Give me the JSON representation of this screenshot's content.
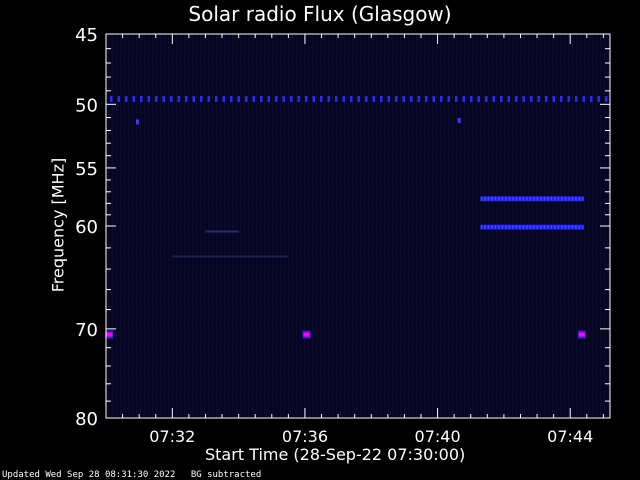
{
  "chart_data": {
    "type": "heatmap",
    "title": "Solar radio Flux (Glasgow)",
    "xlabel": "Start Time (28-Sep-22 07:30:00)",
    "ylabel": "Frequency [MHz]",
    "x_unit": "time",
    "x_start": "07:30:00",
    "x_range_minutes": [
      0,
      15.2
    ],
    "x_ticks": [
      "07:32",
      "07:36",
      "07:40",
      "07:44"
    ],
    "x_tick_minutes": [
      2,
      6,
      10,
      14
    ],
    "y_scale": "log",
    "y_reversed": true,
    "ylim": [
      45,
      80
    ],
    "y_ticks": [
      45,
      50,
      55,
      60,
      70,
      80
    ],
    "y_minor_ticks": [
      46,
      47,
      48,
      49,
      51,
      52,
      53,
      54,
      56,
      57,
      58,
      59,
      62,
      64,
      66,
      68,
      72,
      74,
      76,
      78
    ],
    "colormap": [
      "#000010",
      "#0a0a3a",
      "#1a1aff",
      "#ff00ff"
    ],
    "background_intensity": "low",
    "features": [
      {
        "kind": "dotted-line",
        "freq_mhz": 49.6,
        "time_min": [
          0,
          15.2
        ],
        "color": "#2a2aff"
      },
      {
        "kind": "dot",
        "freq_mhz": 51.3,
        "time_min": 0.95,
        "color": "#3a3aff"
      },
      {
        "kind": "dot",
        "freq_mhz": 51.2,
        "time_min": 10.65,
        "color": "#3a3aff"
      },
      {
        "kind": "band",
        "freq_mhz": 57.6,
        "time_min": [
          11.3,
          14.4
        ],
        "color": "#1a1aff"
      },
      {
        "kind": "band",
        "freq_mhz": 60.1,
        "time_min": [
          11.3,
          14.4
        ],
        "color": "#1a1aff"
      },
      {
        "kind": "faint-line",
        "freq_mhz": 60.5,
        "time_min": [
          3.0,
          4.0
        ],
        "color": "#2a2a6a"
      },
      {
        "kind": "faint-line",
        "freq_mhz": 62.8,
        "time_min": [
          2.0,
          5.5
        ],
        "color": "#20204e"
      },
      {
        "kind": "hotspot",
        "freq_mhz": 70.6,
        "time_min": 0.1,
        "color": "#ff00ff"
      },
      {
        "kind": "hotspot",
        "freq_mhz": 70.6,
        "time_min": 6.05,
        "color": "#ff00ff"
      },
      {
        "kind": "hotspot",
        "freq_mhz": 70.6,
        "time_min": 14.35,
        "color": "#ff00ff"
      }
    ]
  },
  "footer": {
    "updated": "Updated Wed Sep 28 08:31:30 2022",
    "note": "BG subtracted"
  },
  "colors": {
    "background": "#000000",
    "axes": "#ffffff",
    "text": "#ffffff"
  }
}
